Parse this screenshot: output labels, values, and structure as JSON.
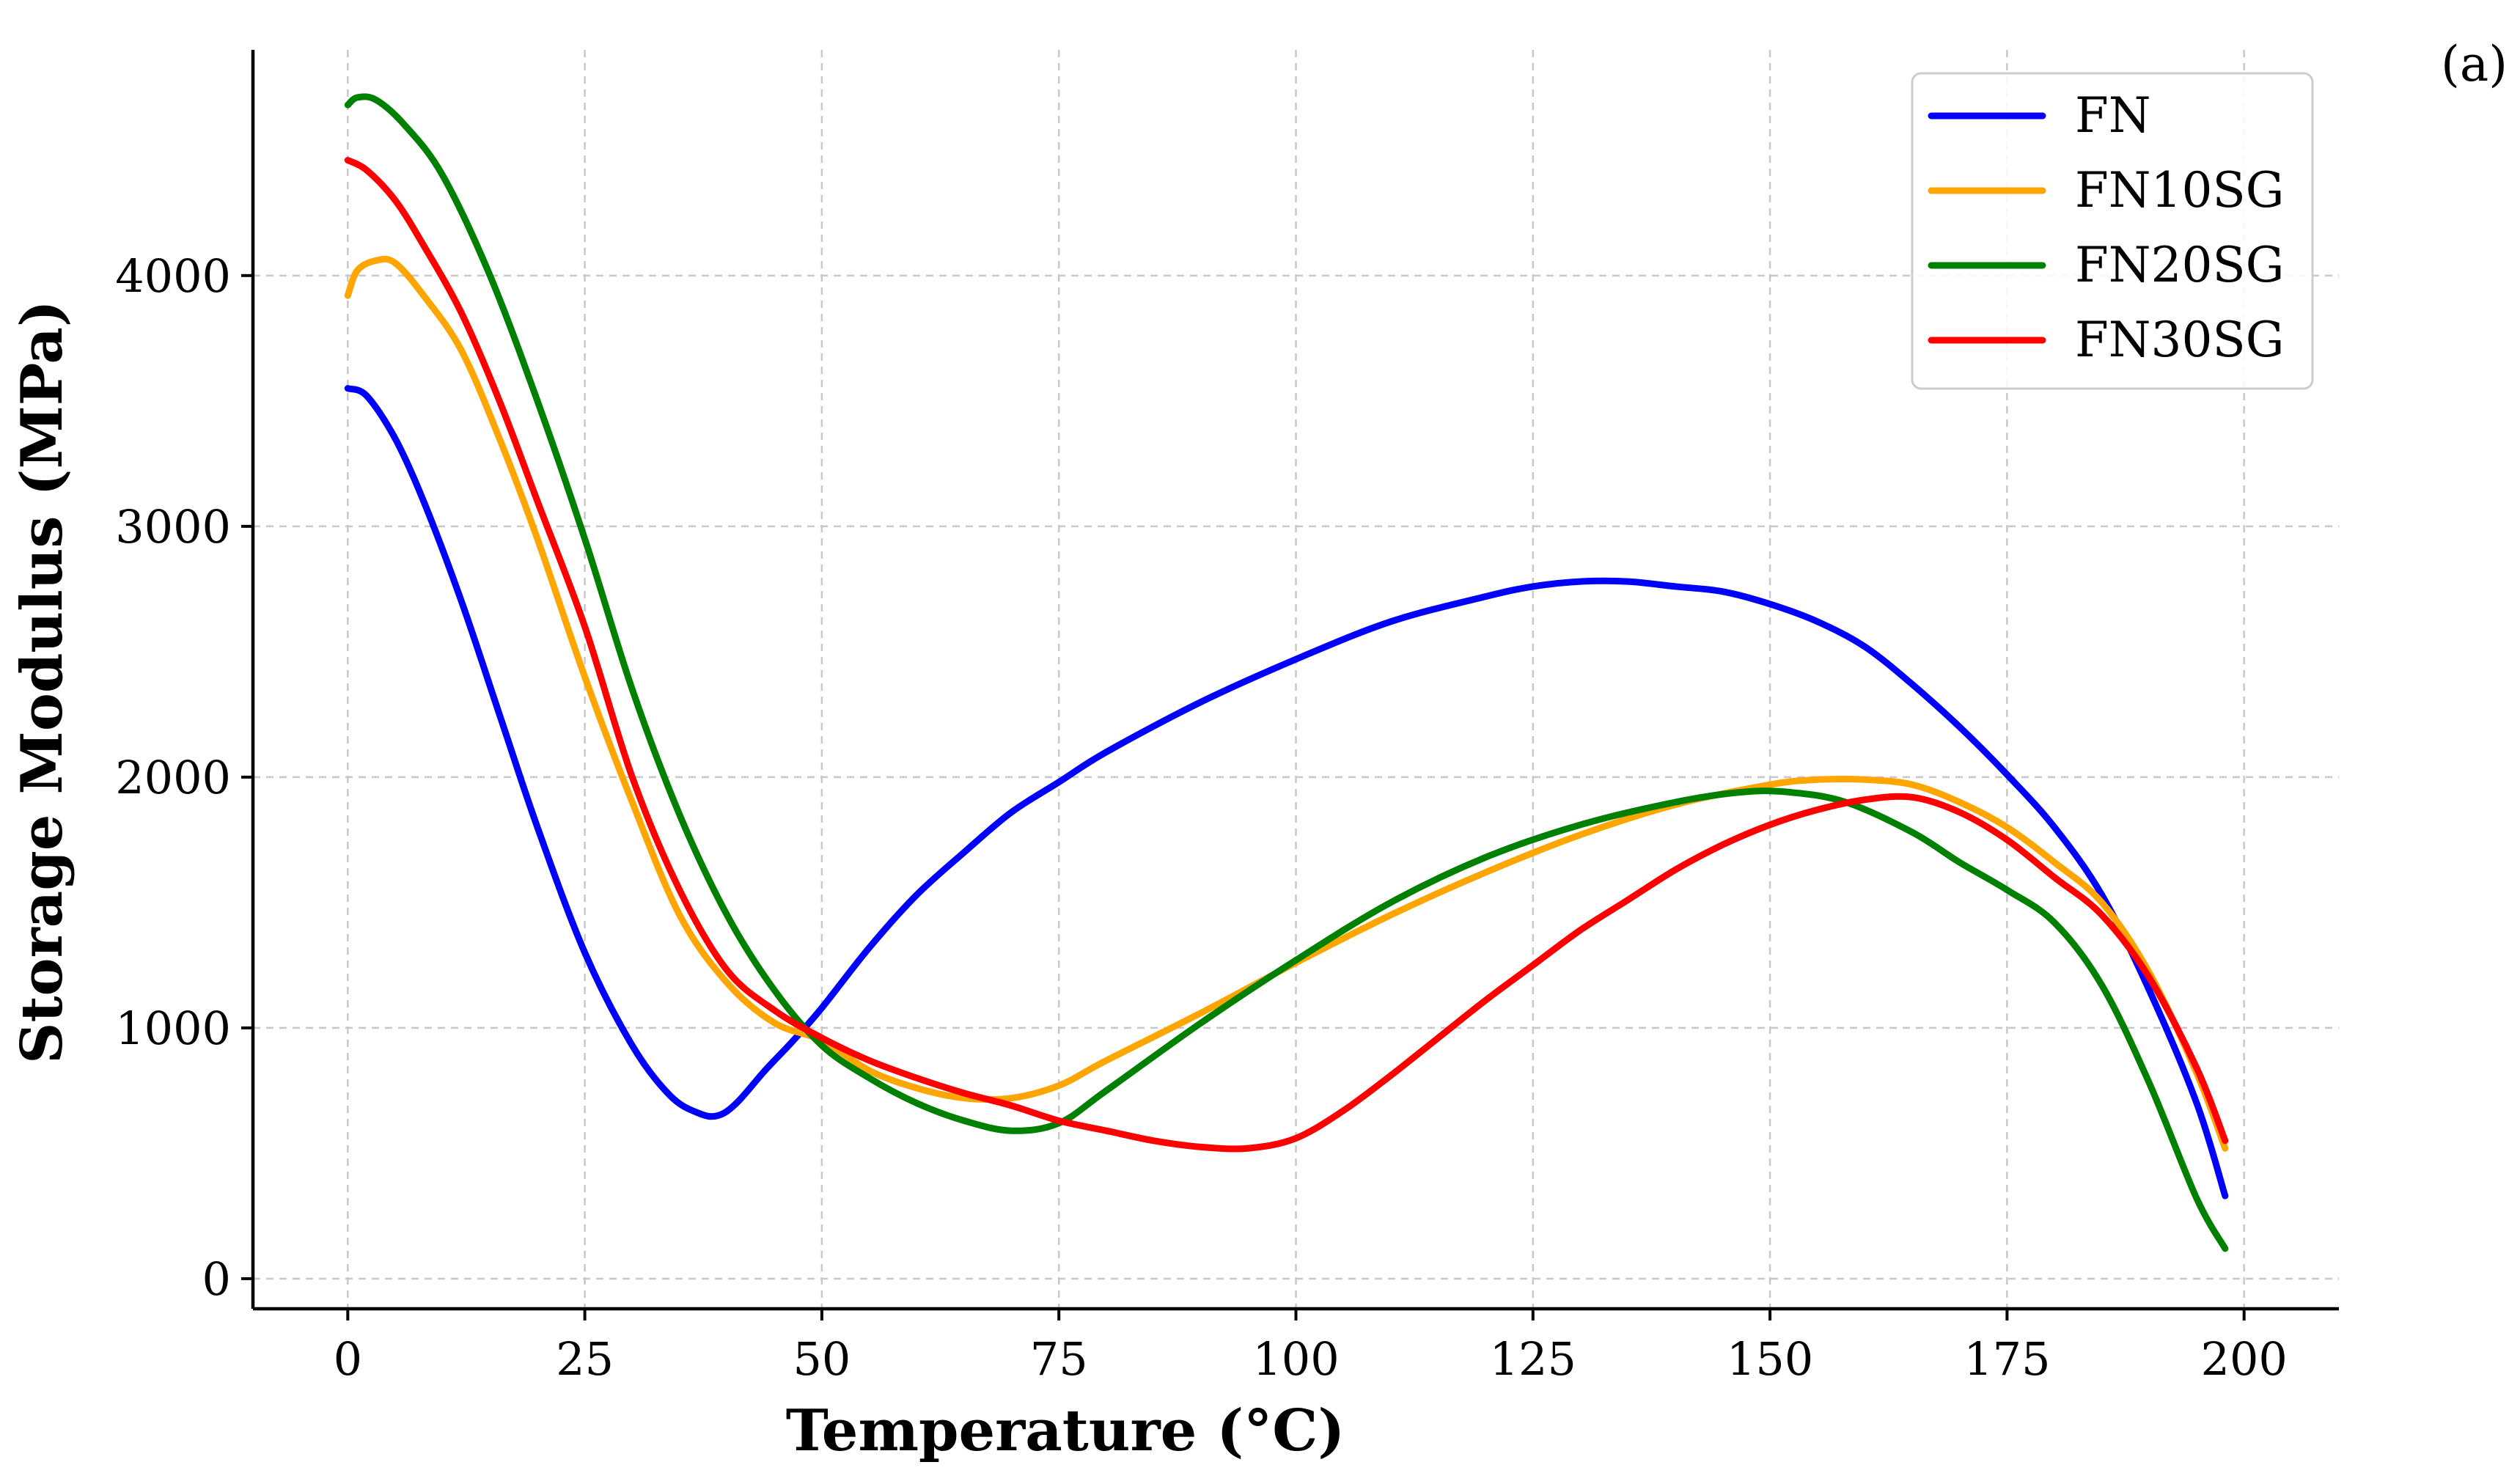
{
  "panel_label": "(a)",
  "chart_data": {
    "type": "line",
    "title": "",
    "xlabel": "Temperature (°C)",
    "ylabel": "Storage Modulus (MPa)",
    "xlim": [
      -10,
      210
    ],
    "ylim": [
      -120,
      4900
    ],
    "xticks": [
      0,
      25,
      50,
      75,
      100,
      125,
      150,
      175,
      200
    ],
    "yticks": [
      0,
      1000,
      2000,
      3000,
      4000
    ],
    "grid": true,
    "legend_position": "top-right",
    "series": [
      {
        "name": "FN",
        "color": "#0000ff",
        "x": [
          0,
          2,
          5,
          8,
          12,
          16,
          20,
          25,
          30,
          34,
          37,
          39,
          41,
          44,
          47,
          50,
          55,
          60,
          65,
          70,
          75,
          80,
          90,
          100,
          110,
          120,
          125,
          130,
          135,
          140,
          145,
          150,
          155,
          160,
          165,
          170,
          175,
          180,
          185,
          190,
          195,
          198
        ],
        "y": [
          3550,
          3520,
          3350,
          3100,
          2700,
          2250,
          1800,
          1300,
          930,
          730,
          660,
          650,
          700,
          830,
          950,
          1080,
          1320,
          1530,
          1700,
          1860,
          1980,
          2100,
          2300,
          2470,
          2620,
          2720,
          2760,
          2780,
          2780,
          2760,
          2740,
          2690,
          2620,
          2520,
          2370,
          2200,
          2010,
          1800,
          1530,
          1150,
          700,
          330
        ]
      },
      {
        "name": "FN10SG",
        "color": "#ffa500",
        "x": [
          0,
          1,
          3,
          5,
          8,
          12,
          16,
          20,
          25,
          30,
          35,
          40,
          45,
          50,
          55,
          60,
          65,
          70,
          75,
          80,
          90,
          100,
          110,
          120,
          130,
          140,
          150,
          155,
          160,
          165,
          170,
          175,
          180,
          185,
          190,
          195,
          198
        ],
        "y": [
          3920,
          4020,
          4060,
          4050,
          3920,
          3700,
          3350,
          2950,
          2400,
          1900,
          1450,
          1180,
          1020,
          950,
          830,
          760,
          720,
          720,
          770,
          870,
          1060,
          1260,
          1450,
          1620,
          1770,
          1890,
          1970,
          1990,
          1990,
          1970,
          1900,
          1800,
          1660,
          1500,
          1220,
          820,
          520
        ]
      },
      {
        "name": "FN20SG",
        "color": "#008000",
        "x": [
          0,
          1,
          3,
          6,
          10,
          15,
          20,
          25,
          30,
          35,
          40,
          45,
          50,
          55,
          60,
          65,
          70,
          75,
          80,
          90,
          100,
          110,
          120,
          130,
          140,
          147,
          152,
          158,
          165,
          170,
          175,
          180,
          185,
          190,
          195,
          198
        ],
        "y": [
          4680,
          4710,
          4700,
          4600,
          4400,
          4000,
          3500,
          2950,
          2350,
          1850,
          1450,
          1150,
          930,
          800,
          700,
          630,
          590,
          620,
          750,
          1020,
          1270,
          1500,
          1680,
          1810,
          1900,
          1940,
          1940,
          1900,
          1780,
          1660,
          1550,
          1420,
          1170,
          780,
          320,
          120
        ]
      },
      {
        "name": "FN30SG",
        "color": "#ff0000",
        "x": [
          0,
          2,
          5,
          8,
          12,
          16,
          20,
          25,
          30,
          35,
          40,
          45,
          50,
          55,
          60,
          65,
          70,
          75,
          80,
          85,
          90,
          95,
          100,
          105,
          110,
          115,
          120,
          125,
          130,
          135,
          140,
          145,
          150,
          155,
          160,
          165,
          170,
          175,
          180,
          185,
          190,
          195,
          198
        ],
        "y": [
          4460,
          4420,
          4300,
          4120,
          3850,
          3500,
          3100,
          2600,
          2000,
          1550,
          1230,
          1070,
          960,
          870,
          800,
          740,
          690,
          630,
          590,
          550,
          525,
          520,
          560,
          670,
          810,
          960,
          1110,
          1250,
          1390,
          1510,
          1630,
          1730,
          1810,
          1870,
          1910,
          1920,
          1860,
          1750,
          1600,
          1450,
          1200,
          840,
          550
        ]
      }
    ]
  }
}
